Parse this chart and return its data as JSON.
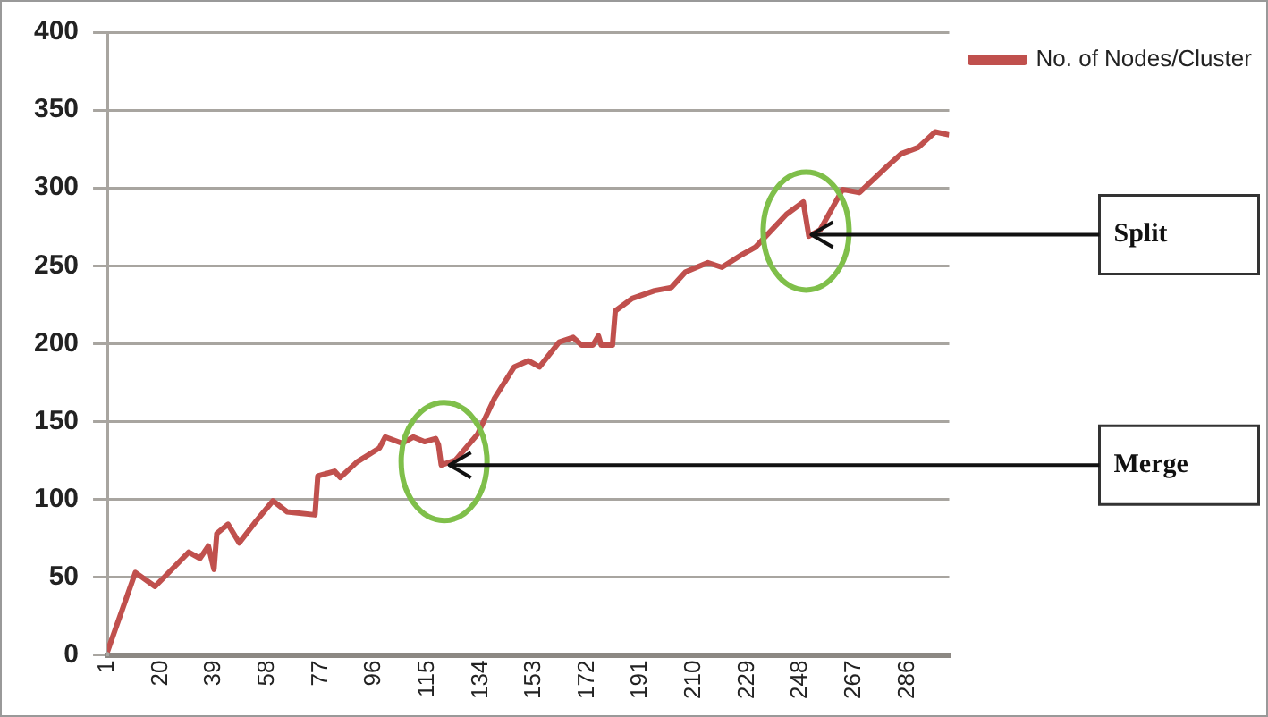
{
  "chart_data": {
    "type": "line",
    "series": [
      {
        "name": "No. of Nodes/Cluster",
        "color": "#c0504d",
        "x": [
          1,
          11,
          18,
          30,
          34,
          37,
          39,
          40,
          44,
          48,
          54,
          60,
          65,
          75,
          76,
          82,
          84,
          90,
          98,
          100,
          106,
          110,
          114,
          118,
          119,
          120,
          125,
          133,
          139,
          146,
          151,
          155,
          162,
          167,
          170,
          174,
          176,
          177,
          181,
          182,
          188,
          196,
          202,
          207,
          215,
          220,
          227,
          232,
          243,
          249,
          251,
          255,
          263,
          269,
          279,
          284,
          290,
          296,
          301
        ],
        "values": [
          2,
          53,
          44,
          66,
          62,
          70,
          55,
          78,
          84,
          72,
          86,
          99,
          92,
          90,
          115,
          118,
          114,
          124,
          133,
          140,
          136,
          140,
          137,
          139,
          135,
          122,
          125,
          142,
          165,
          185,
          189,
          185,
          201,
          204,
          199,
          199,
          205,
          199,
          199,
          221,
          229,
          234,
          236,
          246,
          252,
          249,
          257,
          262,
          283,
          291,
          269,
          273,
          299,
          297,
          314,
          322,
          326,
          336,
          334
        ]
      }
    ],
    "xlim": [
      1,
      301
    ],
    "xticks": [
      1,
      20,
      39,
      58,
      77,
      96,
      115,
      134,
      153,
      172,
      191,
      210,
      229,
      248,
      267,
      286
    ],
    "ylim": [
      0,
      400
    ],
    "yticks": [
      0,
      50,
      100,
      150,
      200,
      250,
      300,
      350,
      400
    ],
    "grid": "y",
    "legend": "top right",
    "marker": "none",
    "line_style": "solid",
    "annotations": [
      {
        "text": "Merge",
        "x": 121,
        "y": 122
      },
      {
        "text": "Split",
        "x": 250,
        "y": 270
      }
    ]
  }
}
